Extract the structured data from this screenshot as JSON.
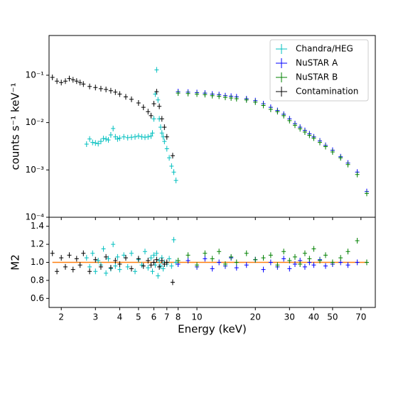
{
  "chart_data": [
    {
      "type": "scatter",
      "ylabel": "counts s⁻¹ keV⁻¹",
      "xscale": "log",
      "yscale": "log",
      "xlim": [
        1.73,
        83
      ],
      "ylim": [
        0.0001,
        0.69
      ],
      "yticks": [
        {
          "value": 0.0001,
          "label": "10⁻⁴"
        },
        {
          "value": 0.001,
          "label": "10⁻³"
        },
        {
          "value": 0.01,
          "label": "10⁻²"
        },
        {
          "value": 0.1,
          "label": "10⁻¹"
        }
      ],
      "legend": "upper right",
      "series": [
        {
          "name": "Chandra/HEG",
          "color": "#00bfbf",
          "x": [
            2.7,
            2.8,
            2.9,
            3.0,
            3.1,
            3.2,
            3.3,
            3.4,
            3.5,
            3.6,
            3.7,
            3.8,
            3.9,
            4.0,
            4.2,
            4.4,
            4.6,
            4.8,
            5.0,
            5.2,
            5.4,
            5.6,
            5.8,
            5.9,
            6.0,
            6.1,
            6.2,
            6.3,
            6.4,
            6.5,
            6.6,
            6.7,
            6.8,
            7.0,
            7.2,
            7.4,
            7.6,
            7.8
          ],
          "values": [
            0.0035,
            0.0045,
            0.0038,
            0.0037,
            0.0036,
            0.004,
            0.0046,
            0.0045,
            0.0043,
            0.0055,
            0.0075,
            0.005,
            0.0045,
            0.0047,
            0.005,
            0.0048,
            0.0049,
            0.005,
            0.0052,
            0.005,
            0.0049,
            0.005,
            0.0052,
            0.006,
            0.012,
            0.04,
            0.13,
            0.03,
            0.012,
            0.008,
            0.006,
            0.005,
            0.004,
            0.0028,
            0.0018,
            0.0012,
            0.0009,
            0.0006
          ]
        },
        {
          "name": "NuSTAR A",
          "color": "#0000ff",
          "x": [
            8,
            9,
            10,
            11,
            12,
            13,
            14,
            15,
            16,
            18,
            20,
            22,
            24,
            26,
            28,
            30,
            32,
            34,
            36,
            38,
            40,
            43,
            46,
            50,
            55,
            60,
            67,
            75
          ],
          "values": [
            0.045,
            0.044,
            0.043,
            0.042,
            0.04,
            0.039,
            0.037,
            0.036,
            0.035,
            0.032,
            0.029,
            0.025,
            0.021,
            0.018,
            0.015,
            0.012,
            0.0095,
            0.008,
            0.0068,
            0.0058,
            0.005,
            0.0041,
            0.0033,
            0.0026,
            0.0019,
            0.0014,
            0.0009,
            0.00035
          ]
        },
        {
          "name": "NuSTAR B",
          "color": "#008000",
          "x": [
            8,
            9,
            10,
            11,
            12,
            13,
            14,
            15,
            16,
            18,
            20,
            22,
            24,
            26,
            28,
            30,
            32,
            34,
            36,
            38,
            40,
            43,
            46,
            50,
            55,
            60,
            67,
            75
          ],
          "values": [
            0.042,
            0.041,
            0.04,
            0.039,
            0.037,
            0.036,
            0.034,
            0.033,
            0.032,
            0.03,
            0.027,
            0.023,
            0.019,
            0.017,
            0.014,
            0.011,
            0.0088,
            0.0074,
            0.0063,
            0.0054,
            0.0047,
            0.0038,
            0.0031,
            0.0024,
            0.0018,
            0.0013,
            0.0008,
            0.00032
          ]
        },
        {
          "name": "Contamination",
          "color": "#000000",
          "x": [
            1.8,
            1.9,
            2.0,
            2.1,
            2.2,
            2.3,
            2.4,
            2.5,
            2.6,
            2.8,
            3.0,
            3.2,
            3.4,
            3.6,
            3.8,
            4.0,
            4.3,
            4.6,
            5.0,
            5.3,
            5.6,
            5.8,
            6.0,
            6.2,
            6.4,
            6.6,
            6.8,
            7.0,
            7.5
          ],
          "values": [
            0.09,
            0.075,
            0.07,
            0.075,
            0.085,
            0.08,
            0.075,
            0.07,
            0.065,
            0.058,
            0.055,
            0.052,
            0.05,
            0.047,
            0.044,
            0.04,
            0.035,
            0.031,
            0.026,
            0.021,
            0.017,
            0.014,
            0.025,
            0.045,
            0.022,
            0.012,
            0.008,
            0.005,
            0.002
          ]
        }
      ]
    },
    {
      "type": "scatter",
      "xlabel": "Energy (keV)",
      "ylabel": "M2",
      "xscale": "log",
      "xlim": [
        1.73,
        83
      ],
      "ylim": [
        0.5,
        1.5
      ],
      "xticks": [
        2,
        3,
        4,
        5,
        6,
        7,
        8,
        10,
        20,
        30,
        40,
        50,
        70
      ],
      "yticks": [
        0.6,
        0.8,
        {
          "value": 1,
          "label": "1.0"
        },
        1.2,
        1.4
      ],
      "reference": 1,
      "reference_color": "#ff7f0e",
      "series": [
        {
          "color": "#00bfbf",
          "x": [
            2.7,
            2.8,
            2.9,
            3.0,
            3.1,
            3.2,
            3.3,
            3.4,
            3.5,
            3.6,
            3.7,
            3.8,
            3.9,
            4.0,
            4.2,
            4.4,
            4.6,
            4.8,
            5.0,
            5.2,
            5.4,
            5.6,
            5.8,
            5.9,
            6.0,
            6.1,
            6.2,
            6.3,
            6.4,
            6.5,
            6.6,
            6.7,
            6.8,
            7.0,
            7.2,
            7.4,
            7.6,
            7.8
          ],
          "values": [
            1.05,
            0.95,
            1.1,
            0.9,
            1.02,
            0.97,
            1.15,
            0.88,
            1.04,
            0.93,
            1.2,
            0.96,
            1.06,
            0.92,
            1.08,
            0.95,
            1.1,
            0.9,
            1.03,
            0.97,
            1.12,
            0.94,
            1.05,
            0.9,
            1.08,
            0.97,
            1.1,
            0.85,
            1.02,
            0.96,
            1.05,
            0.93,
            1.0,
            0.98,
            1.04,
            0.96,
            1.25,
            1.0
          ]
        },
        {
          "color": "#0000ff",
          "x": [
            8,
            9,
            10,
            11,
            12,
            13,
            14,
            15,
            16,
            18,
            20,
            22,
            24,
            26,
            28,
            30,
            32,
            34,
            36,
            38,
            40,
            43,
            46,
            50,
            55,
            60,
            67,
            75
          ],
          "values": [
            0.98,
            1.02,
            0.95,
            1.04,
            0.93,
            1.0,
            0.96,
            1.05,
            0.94,
            0.97,
            1.03,
            0.92,
            1.0,
            0.95,
            1.04,
            0.93,
            0.98,
            1.02,
            0.95,
            1.0,
            0.97,
            1.03,
            0.96,
            0.98,
            1.0,
            0.97,
            1.0,
            1.0
          ]
        },
        {
          "color": "#008000",
          "x": [
            8,
            9,
            10,
            11,
            12,
            13,
            14,
            15,
            16,
            18,
            20,
            22,
            24,
            26,
            28,
            30,
            32,
            34,
            36,
            38,
            40,
            43,
            46,
            50,
            55,
            60,
            67,
            75
          ],
          "values": [
            1.02,
            1.08,
            0.97,
            1.1,
            1.04,
            1.12,
            0.98,
            1.06,
            1.0,
            1.1,
            1.03,
            1.05,
            1.08,
            0.97,
            1.12,
            1.02,
            1.06,
            0.98,
            1.1,
            1.04,
            1.15,
            1.02,
            1.08,
            1.0,
            1.05,
            1.12,
            1.24,
            1.0
          ]
        },
        {
          "color": "#000000",
          "x": [
            1.8,
            1.9,
            2.0,
            2.1,
            2.2,
            2.3,
            2.4,
            2.5,
            2.6,
            2.8,
            3.0,
            3.2,
            3.4,
            3.6,
            3.8,
            4.0,
            4.3,
            4.6,
            5.0,
            5.3,
            5.6,
            5.8,
            6.0,
            6.2,
            6.4,
            6.6,
            6.8,
            7.0,
            7.5
          ],
          "values": [
            1.1,
            0.9,
            1.05,
            0.95,
            1.08,
            0.92,
            1.04,
            0.97,
            1.1,
            0.9,
            1.03,
            0.95,
            1.06,
            0.94,
            1.02,
            0.98,
            1.05,
            0.93,
            1.04,
            0.96,
            1.02,
            0.97,
            1.0,
            1.03,
            0.95,
            1.02,
            0.98,
            1.0,
            0.78
          ]
        }
      ]
    }
  ]
}
